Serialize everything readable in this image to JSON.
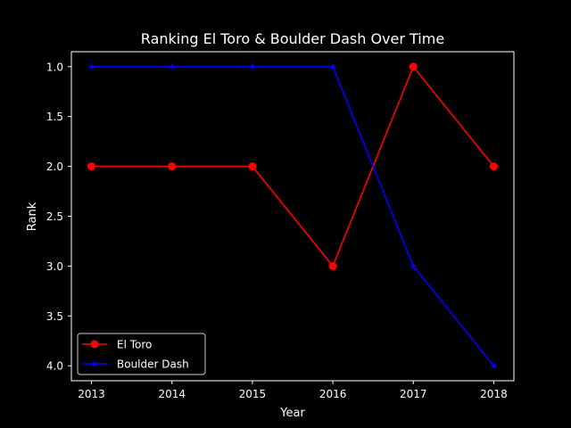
{
  "chart_data": {
    "type": "line",
    "title": "Ranking El Toro & Boulder Dash Over Time",
    "xlabel": "Year",
    "ylabel": "Rank",
    "x": [
      2013,
      2014,
      2015,
      2016,
      2017,
      2018
    ],
    "x_ticks": [
      "2013",
      "2014",
      "2015",
      "2016",
      "2017",
      "2018"
    ],
    "y_ticks": [
      "1.0",
      "1.5",
      "2.0",
      "2.5",
      "3.0",
      "3.5",
      "4.0"
    ],
    "y_tick_values": [
      1.0,
      1.5,
      2.0,
      2.5,
      3.0,
      3.5,
      4.0
    ],
    "ylim": [
      4.15,
      0.85
    ],
    "y_inverted": true,
    "grid": false,
    "legend_position": "lower-left",
    "background": "#000000",
    "series": [
      {
        "name": "El Toro",
        "values": [
          2,
          2,
          2,
          3,
          1,
          2
        ],
        "color": "#ff0000",
        "marker": "circle"
      },
      {
        "name": "Boulder Dash",
        "values": [
          1,
          1,
          1,
          1,
          3,
          4
        ],
        "color": "#0000ff",
        "marker": "star"
      }
    ]
  }
}
